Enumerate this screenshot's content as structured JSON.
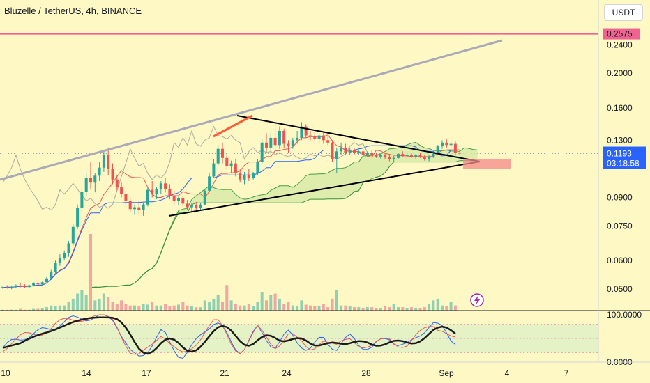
{
  "header": {
    "title": "Bluzelle / TetherUS, 4h, BINANCE",
    "currency": "USDT"
  },
  "colors": {
    "background": "#fdf8c4",
    "up": "#26a69a",
    "down": "#ef5350",
    "resistance": "#f06292",
    "trendline": "#a9a9b8",
    "ichimoku_cloud": "#d6e8a6",
    "volume_up": "#8fd0b2",
    "volume_down": "#f5a5a0",
    "current_price_bg": "#2962ff"
  },
  "price_badges": {
    "resistance_price": "0.2575",
    "current_price": "0.1193",
    "countdown": "03:18:58"
  },
  "icons": {
    "lightning": "lightning-icon"
  },
  "chart_data": {
    "type": "candlestick",
    "title": "Bluzelle / TetherUS, 4h, BINANCE",
    "y_scale": "log",
    "ylim": [
      0.0435,
      0.32
    ],
    "y_ticks": [
      "0.2400",
      "0.2000",
      "0.1600",
      "0.1300",
      "0.0900",
      "0.0750",
      "0.0600",
      "0.0500"
    ],
    "x_ticks": [
      "10",
      "14",
      "17",
      "21",
      "24",
      "28",
      "Sep",
      "4",
      "7"
    ],
    "resistance_level": 0.2575,
    "current_price": 0.1193,
    "candles": [
      [
        0.0502,
        0.051,
        0.05,
        0.0506
      ],
      [
        0.0506,
        0.0512,
        0.0501,
        0.0503
      ],
      [
        0.0503,
        0.051,
        0.0499,
        0.0507
      ],
      [
        0.0507,
        0.0515,
        0.0503,
        0.0511
      ],
      [
        0.0511,
        0.0518,
        0.0505,
        0.0509
      ],
      [
        0.0509,
        0.0515,
        0.0502,
        0.0506
      ],
      [
        0.0506,
        0.0514,
        0.0503,
        0.0512
      ],
      [
        0.0512,
        0.0522,
        0.0508,
        0.0519
      ],
      [
        0.0519,
        0.0526,
        0.0512,
        0.0515
      ],
      [
        0.0515,
        0.0524,
        0.0511,
        0.0522
      ],
      [
        0.0522,
        0.054,
        0.0518,
        0.0535
      ],
      [
        0.0535,
        0.0565,
        0.053,
        0.0558
      ],
      [
        0.0558,
        0.06,
        0.055,
        0.059
      ],
      [
        0.059,
        0.0625,
        0.058,
        0.061
      ],
      [
        0.061,
        0.064,
        0.06,
        0.0628
      ],
      [
        0.0628,
        0.068,
        0.0615,
        0.067
      ],
      [
        0.067,
        0.076,
        0.066,
        0.0745
      ],
      [
        0.0745,
        0.086,
        0.0735,
        0.084
      ],
      [
        0.084,
        0.096,
        0.082,
        0.0935
      ],
      [
        0.0935,
        0.105,
        0.091,
        0.102
      ],
      [
        0.102,
        0.113,
        0.095,
        0.099
      ],
      [
        0.099,
        0.105,
        0.093,
        0.1035
      ],
      [
        0.1035,
        0.113,
        0.1,
        0.109
      ],
      [
        0.109,
        0.122,
        0.106,
        0.118
      ],
      [
        0.118,
        0.124,
        0.104,
        0.108
      ],
      [
        0.108,
        0.112,
        0.098,
        0.101
      ],
      [
        0.101,
        0.104,
        0.094,
        0.096
      ],
      [
        0.096,
        0.099,
        0.09,
        0.092
      ],
      [
        0.092,
        0.094,
        0.085,
        0.088
      ],
      [
        0.088,
        0.09,
        0.0815,
        0.0835
      ],
      [
        0.0835,
        0.086,
        0.0805,
        0.0845
      ],
      [
        0.0845,
        0.088,
        0.081,
        0.083
      ],
      [
        0.083,
        0.087,
        0.08,
        0.086
      ],
      [
        0.086,
        0.096,
        0.085,
        0.0945
      ],
      [
        0.0945,
        0.1,
        0.09,
        0.092
      ],
      [
        0.092,
        0.096,
        0.089,
        0.095
      ],
      [
        0.095,
        0.1,
        0.092,
        0.0985
      ],
      [
        0.0985,
        0.102,
        0.093,
        0.095
      ],
      [
        0.095,
        0.098,
        0.089,
        0.091
      ],
      [
        0.091,
        0.094,
        0.086,
        0.088
      ],
      [
        0.088,
        0.091,
        0.0855,
        0.0895
      ],
      [
        0.0895,
        0.091,
        0.085,
        0.0865
      ],
      [
        0.0865,
        0.0885,
        0.083,
        0.0845
      ],
      [
        0.0845,
        0.087,
        0.082,
        0.0855
      ],
      [
        0.0855,
        0.0875,
        0.083,
        0.084
      ],
      [
        0.084,
        0.087,
        0.083,
        0.086
      ],
      [
        0.086,
        0.095,
        0.0855,
        0.094
      ],
      [
        0.094,
        0.105,
        0.093,
        0.103
      ],
      [
        0.103,
        0.115,
        0.102,
        0.112
      ],
      [
        0.112,
        0.126,
        0.11,
        0.123
      ],
      [
        0.123,
        0.128,
        0.112,
        0.116
      ],
      [
        0.116,
        0.12,
        0.108,
        0.11
      ],
      [
        0.11,
        0.114,
        0.105,
        0.112
      ],
      [
        0.112,
        0.115,
        0.103,
        0.105
      ],
      [
        0.105,
        0.108,
        0.099,
        0.101
      ],
      [
        0.101,
        0.106,
        0.098,
        0.104
      ],
      [
        0.104,
        0.108,
        0.1,
        0.102
      ],
      [
        0.102,
        0.106,
        0.101,
        0.105
      ],
      [
        0.105,
        0.115,
        0.104,
        0.113
      ],
      [
        0.113,
        0.131,
        0.112,
        0.128
      ],
      [
        0.128,
        0.136,
        0.12,
        0.124
      ],
      [
        0.124,
        0.136,
        0.118,
        0.132
      ],
      [
        0.132,
        0.145,
        0.122,
        0.126
      ],
      [
        0.126,
        0.142,
        0.123,
        0.138
      ],
      [
        0.138,
        0.14,
        0.124,
        0.127
      ],
      [
        0.127,
        0.13,
        0.12,
        0.125
      ],
      [
        0.125,
        0.132,
        0.123,
        0.13
      ],
      [
        0.13,
        0.138,
        0.127,
        0.132
      ],
      [
        0.132,
        0.146,
        0.13,
        0.142
      ],
      [
        0.142,
        0.144,
        0.132,
        0.134
      ],
      [
        0.134,
        0.138,
        0.13,
        0.133
      ],
      [
        0.133,
        0.137,
        0.129,
        0.131
      ],
      [
        0.131,
        0.136,
        0.128,
        0.134
      ],
      [
        0.134,
        0.137,
        0.127,
        0.13
      ],
      [
        0.13,
        0.133,
        0.126,
        0.128
      ],
      [
        0.128,
        0.13,
        0.113,
        0.115
      ],
      [
        0.115,
        0.124,
        0.105,
        0.121
      ],
      [
        0.121,
        0.128,
        0.118,
        0.124
      ],
      [
        0.124,
        0.127,
        0.118,
        0.12
      ],
      [
        0.12,
        0.124,
        0.118,
        0.122
      ],
      [
        0.122,
        0.124,
        0.1185,
        0.12
      ],
      [
        0.12,
        0.1225,
        0.118,
        0.121
      ],
      [
        0.121,
        0.123,
        0.117,
        0.1185
      ],
      [
        0.1185,
        0.121,
        0.1165,
        0.12
      ],
      [
        0.12,
        0.122,
        0.117,
        0.118
      ],
      [
        0.118,
        0.12,
        0.116,
        0.117
      ],
      [
        0.117,
        0.1195,
        0.1155,
        0.1185
      ],
      [
        0.1185,
        0.12,
        0.115,
        0.1165
      ],
      [
        0.1165,
        0.119,
        0.1135,
        0.115
      ],
      [
        0.115,
        0.1175,
        0.113,
        0.116
      ],
      [
        0.116,
        0.12,
        0.115,
        0.119
      ],
      [
        0.119,
        0.121,
        0.1165,
        0.1175
      ],
      [
        0.1175,
        0.12,
        0.116,
        0.1185
      ],
      [
        0.1185,
        0.12,
        0.116,
        0.117
      ],
      [
        0.117,
        0.119,
        0.115,
        0.118
      ],
      [
        0.118,
        0.1195,
        0.116,
        0.117
      ],
      [
        0.117,
        0.1185,
        0.114,
        0.115
      ],
      [
        0.115,
        0.118,
        0.1135,
        0.117
      ],
      [
        0.117,
        0.12,
        0.116,
        0.119
      ],
      [
        0.119,
        0.126,
        0.118,
        0.125
      ],
      [
        0.125,
        0.13,
        0.123,
        0.128
      ],
      [
        0.128,
        0.131,
        0.124,
        0.126
      ],
      [
        0.126,
        0.13,
        0.123,
        0.127
      ],
      [
        0.127,
        0.129,
        0.118,
        0.12
      ],
      [
        0.12,
        0.122,
        0.118,
        0.1193
      ]
    ],
    "volume": [
      1,
      1,
      1,
      1,
      2,
      1,
      1,
      2,
      2,
      3,
      4,
      6,
      5,
      6,
      6,
      10,
      14,
      20,
      24,
      18,
      90,
      12,
      14,
      20,
      16,
      10,
      8,
      12,
      8,
      6,
      6,
      5,
      8,
      7,
      10,
      6,
      6,
      8,
      5,
      6,
      7,
      10,
      6,
      5,
      4,
      4,
      12,
      10,
      14,
      18,
      10,
      30,
      12,
      8,
      6,
      6,
      8,
      5,
      10,
      22,
      12,
      18,
      20,
      14,
      8,
      10,
      6,
      5,
      12,
      7,
      6,
      5,
      5,
      8,
      4,
      14,
      24,
      6,
      6,
      5,
      4,
      4,
      3,
      4,
      4,
      3,
      3,
      5,
      4,
      8,
      4,
      4,
      3,
      4,
      3,
      3,
      4,
      8,
      12,
      14,
      6,
      5,
      10,
      6
    ],
    "volume_direction": "close-vs-open",
    "stoch_rsi": {
      "upper_level": "100.0000",
      "lower_level": "0.0000",
      "values": [
        30,
        35,
        40,
        45,
        50,
        55,
        58,
        60,
        62,
        65,
        68,
        72,
        78,
        82,
        85,
        88,
        90,
        92,
        94,
        95,
        95,
        94,
        95,
        94,
        93,
        92,
        80,
        60,
        40,
        20,
        12,
        10,
        18,
        28,
        40,
        52,
        62,
        55,
        40,
        28,
        18,
        14,
        20,
        30,
        42,
        55,
        68,
        78,
        85,
        82,
        70,
        55,
        40,
        30,
        26,
        32,
        45,
        58,
        70,
        60,
        50,
        40,
        35,
        42,
        52,
        60,
        55,
        45,
        38,
        30,
        28,
        35,
        45,
        50,
        42,
        35,
        30,
        38,
        45,
        52,
        48,
        40,
        35,
        32,
        30,
        36,
        42,
        48,
        52,
        46,
        40,
        36,
        34,
        40,
        50,
        60,
        70,
        78,
        82,
        75,
        70,
        60,
        50,
        45
      ]
    }
  }
}
